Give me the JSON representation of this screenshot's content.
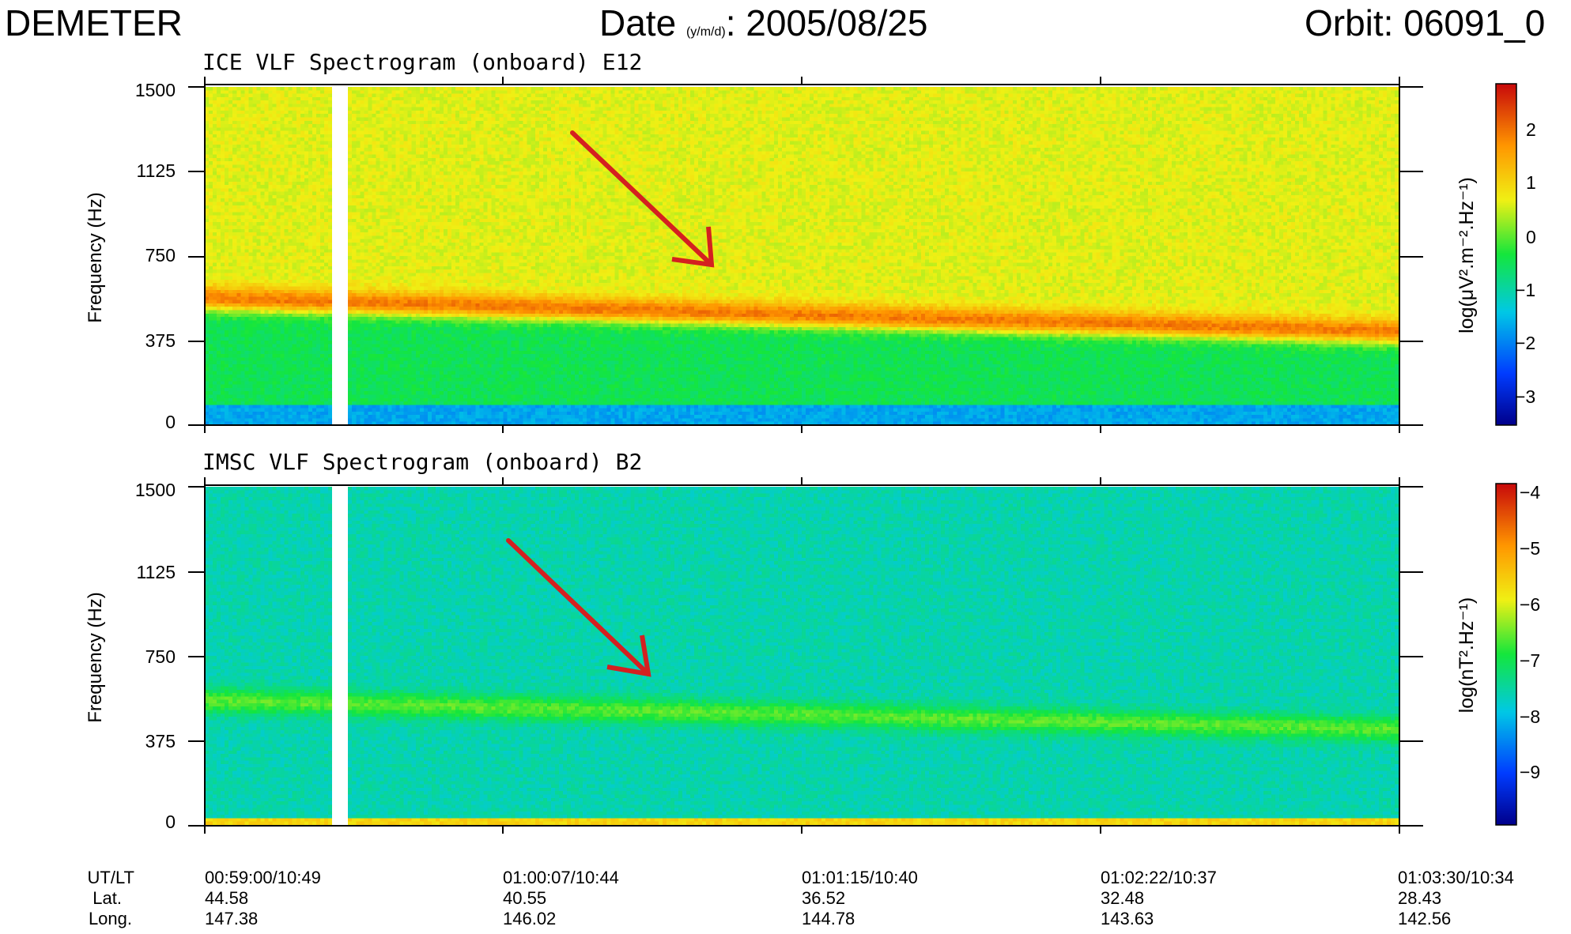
{
  "header": {
    "mission": "DEMETER",
    "date_label": "Date",
    "date_format": "(y/m/d)",
    "date_value": ": 2005/08/25",
    "orbit": "Orbit: 06091_0"
  },
  "panels": [
    {
      "title": "ICE VLF Spectrogram (onboard) E12",
      "ylabel": "Frequency (Hz)",
      "yticks": [
        "1500",
        "1125",
        "750",
        "375",
        "0"
      ],
      "colorbar_label": "log(μV².m⁻².Hz⁻¹)",
      "colorbar_ticks": [
        "2",
        "1",
        "0",
        "−1",
        "−2",
        "−3"
      ]
    },
    {
      "title": "IMSC VLF Spectrogram (onboard) B2",
      "ylabel": "Frequency (Hz)",
      "yticks": [
        "1500",
        "1125",
        "750",
        "375",
        "0"
      ],
      "colorbar_label": "log(nT².Hz⁻¹)",
      "colorbar_ticks": [
        "−4",
        "−5",
        "−6",
        "−7",
        "−8",
        "−9"
      ]
    }
  ],
  "xaxis": {
    "row_labels": [
      "UT/LT",
      "Lat.",
      "Long."
    ],
    "ticks": [
      {
        "ut_lt": "00:59:00/10:49",
        "lat": "44.58",
        "long": "147.38"
      },
      {
        "ut_lt": "01:00:07/10:44",
        "lat": "40.55",
        "long": "146.02"
      },
      {
        "ut_lt": "01:01:15/10:40",
        "lat": "36.52",
        "long": "144.78"
      },
      {
        "ut_lt": "01:02:22/10:37",
        "lat": "32.48",
        "long": "143.63"
      },
      {
        "ut_lt": "01:03:30/10:34",
        "lat": "28.43",
        "long": "142.56"
      }
    ]
  },
  "colors": {
    "annotation_arrow": "#d42020"
  },
  "chart_data": [
    {
      "type": "heatmap",
      "title": "ICE VLF Spectrogram (onboard) E12",
      "xlabel": "UT/LT",
      "ylabel": "Frequency (Hz)",
      "ylim": [
        0,
        1500
      ],
      "x_ticks": [
        "00:59:00/10:49",
        "01:00:07/10:44",
        "01:01:15/10:40",
        "01:02:22/10:37",
        "01:03:30/10:34"
      ],
      "y_ticks": [
        0,
        375,
        750,
        1125,
        1500
      ],
      "colorbar": {
        "label": "log(μV².m⁻².Hz⁻¹)",
        "range": [
          -3.5,
          2.8
        ],
        "ticks": [
          2,
          1,
          0,
          -1,
          -2,
          -3
        ]
      },
      "features": [
        {
          "name": "band",
          "freq_start_hz": 560,
          "freq_end_hz": 410,
          "log_value": 1.9
        },
        {
          "name": "background above band",
          "log_value": 0.6
        },
        {
          "name": "background below band",
          "log_value": -0.5
        },
        {
          "name": "data gap",
          "time_fraction": [
            0.105,
            0.12
          ]
        }
      ]
    },
    {
      "type": "heatmap",
      "title": "IMSC VLF Spectrogram (onboard) B2",
      "xlabel": "UT/LT",
      "ylabel": "Frequency (Hz)",
      "ylim": [
        0,
        1500
      ],
      "x_ticks": [
        "00:59:00/10:49",
        "01:00:07/10:44",
        "01:01:15/10:40",
        "01:02:22/10:37",
        "01:03:30/10:34"
      ],
      "y_ticks": [
        0,
        375,
        750,
        1125,
        1500
      ],
      "colorbar": {
        "label": "log(nT².Hz⁻¹)",
        "range": [
          -10,
          -3.8
        ],
        "ticks": [
          -4,
          -5,
          -6,
          -7,
          -8,
          -9
        ]
      },
      "features": [
        {
          "name": "band",
          "freq_start_hz": 550,
          "freq_end_hz": 420,
          "log_value": -6.6
        },
        {
          "name": "background",
          "log_value": -7.6
        },
        {
          "name": "data gap",
          "time_fraction": [
            0.105,
            0.12
          ]
        }
      ]
    }
  ]
}
